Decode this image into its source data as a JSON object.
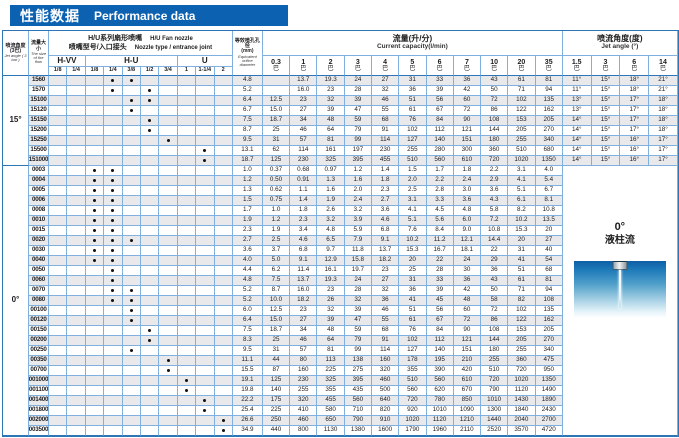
{
  "title": {
    "zh": "性能数据",
    "en": "Performance data"
  },
  "colors": {
    "title_bar": "#0c62b0",
    "grid_line": "#7fb0de",
    "grid_outer": "#2e75b6",
    "stripe": "#e9e9ec",
    "text": "#1c1c1c",
    "dot": "#111111"
  },
  "header": {
    "jet_angle_col": {
      "zh": "喷流角度(3巴)",
      "en": "Jet angle ( 3 bar )"
    },
    "flow_col": {
      "zh": "流量大小",
      "en": "The size of the flow"
    },
    "nozzle_group": {
      "zh1": "H/U系列扇形喷嘴",
      "en1": "H/U  Fan nozzle",
      "zh2": "喷嘴型号/入口接头",
      "en2": "Nozzle type / entrance joint"
    },
    "nozzle_families": [
      {
        "name": "H-VV",
        "sizes": [
          "1/8",
          "1/4"
        ]
      },
      {
        "name": "H-U",
        "sizes": [
          "1/8",
          "1/4",
          "3/8",
          "1/2",
          "3/4"
        ]
      },
      {
        "name": "U",
        "sizes": [
          "1",
          "1-1/4",
          "2"
        ]
      }
    ],
    "orifice_col": {
      "zh": "等效喷孔孔径",
      "unit": "(mm)",
      "en": "Equivalent orifice diameter"
    },
    "capacity_group": {
      "zh": "流量(升/分)",
      "en": "Current capacity(l/min)"
    },
    "capacity_pressures": [
      "0.3",
      "1",
      "2",
      "3",
      "4",
      "5",
      "6",
      "7",
      "10",
      "20",
      "35"
    ],
    "pressure_unit": "巴",
    "angle_group": {
      "zh": "喷流角度(度)",
      "en": "Jet angle (°)"
    },
    "angle_pressures": [
      "1.5",
      "3",
      "6",
      "14"
    ]
  },
  "groups": [
    {
      "angle": "15°",
      "rows": [
        {
          "flow": "1560",
          "dots": [
            3,
            4
          ],
          "orifice": "4.8",
          "capacity": [
            "",
            "13.7",
            "19.3",
            "24",
            "27",
            "31",
            "33",
            "36",
            "43",
            "61",
            "81"
          ],
          "angles": [
            "11°",
            "15°",
            "18°",
            "21°"
          ]
        },
        {
          "flow": "1570",
          "dots": [
            3,
            5
          ],
          "orifice": "5.2",
          "capacity": [
            "",
            "16.0",
            "23",
            "28",
            "32",
            "36",
            "39",
            "42",
            "50",
            "71",
            "94"
          ],
          "angles": [
            "11°",
            "15°",
            "18°",
            "21°"
          ]
        },
        {
          "flow": "15100",
          "dots": [
            4,
            5
          ],
          "orifice": "6.4",
          "capacity": [
            "12.5",
            "23",
            "32",
            "39",
            "46",
            "51",
            "56",
            "60",
            "72",
            "102",
            "135"
          ],
          "angles": [
            "13°",
            "15°",
            "17°",
            "18°"
          ]
        },
        {
          "flow": "15120",
          "dots": [
            4
          ],
          "orifice": "6.7",
          "capacity": [
            "15.0",
            "27",
            "39",
            "47",
            "55",
            "61",
            "67",
            "72",
            "86",
            "122",
            "162"
          ],
          "angles": [
            "13°",
            "15°",
            "17°",
            "18°"
          ]
        },
        {
          "flow": "15150",
          "dots": [
            5
          ],
          "orifice": "7.5",
          "capacity": [
            "18.7",
            "34",
            "48",
            "59",
            "68",
            "76",
            "84",
            "90",
            "108",
            "153",
            "205"
          ],
          "angles": [
            "14°",
            "15°",
            "17°",
            "18°"
          ]
        },
        {
          "flow": "15200",
          "dots": [
            5
          ],
          "orifice": "8.7",
          "capacity": [
            "25",
            "46",
            "64",
            "79",
            "91",
            "102",
            "112",
            "121",
            "144",
            "205",
            "270"
          ],
          "angles": [
            "14°",
            "15°",
            "17°",
            "18°"
          ]
        },
        {
          "flow": "15250",
          "dots": [
            6
          ],
          "orifice": "9.5",
          "capacity": [
            "31",
            "57",
            "81",
            "99",
            "114",
            "127",
            "140",
            "151",
            "180",
            "255",
            "340"
          ],
          "angles": [
            "14°",
            "15°",
            "16°",
            "17°"
          ]
        },
        {
          "flow": "15500",
          "dots": [
            8
          ],
          "orifice": "13.1",
          "capacity": [
            "62",
            "114",
            "161",
            "197",
            "230",
            "255",
            "280",
            "300",
            "360",
            "510",
            "680"
          ],
          "angles": [
            "14°",
            "15°",
            "16°",
            "17°"
          ]
        },
        {
          "flow": "151000",
          "dots": [
            8
          ],
          "orifice": "18.7",
          "capacity": [
            "125",
            "230",
            "325",
            "395",
            "455",
            "510",
            "560",
            "610",
            "720",
            "1020",
            "1350"
          ],
          "angles": [
            "14°",
            "15°",
            "16°",
            "17°"
          ]
        }
      ]
    },
    {
      "angle": "0°",
      "graphic": {
        "deg": "0°",
        "zh": "液柱流"
      },
      "rows": [
        {
          "flow": "0003",
          "dots": [
            2,
            3
          ],
          "orifice": "1.0",
          "capacity": [
            "0.37",
            "0.68",
            "0.97",
            "1.2",
            "1.4",
            "1.5",
            "1.7",
            "1.8",
            "2.2",
            "3.1",
            "4.0"
          ]
        },
        {
          "flow": "0004",
          "dots": [
            2,
            3
          ],
          "orifice": "1.2",
          "capacity": [
            "0.50",
            "0.91",
            "1.3",
            "1.6",
            "1.8",
            "2.0",
            "2.2",
            "2.4",
            "2.9",
            "4.1",
            "5.4"
          ]
        },
        {
          "flow": "0005",
          "dots": [
            2,
            3
          ],
          "orifice": "1.3",
          "capacity": [
            "0.62",
            "1.1",
            "1.6",
            "2.0",
            "2.3",
            "2.5",
            "2.8",
            "3.0",
            "3.6",
            "5.1",
            "6.7"
          ]
        },
        {
          "flow": "0006",
          "dots": [
            2,
            3
          ],
          "orifice": "1.5",
          "capacity": [
            "0.75",
            "1.4",
            "1.9",
            "2.4",
            "2.7",
            "3.1",
            "3.3",
            "3.6",
            "4.3",
            "6.1",
            "8.1"
          ]
        },
        {
          "flow": "0008",
          "dots": [
            2,
            3
          ],
          "orifice": "1.7",
          "capacity": [
            "1.0",
            "1.8",
            "2.6",
            "3.2",
            "3.6",
            "4.1",
            "4.5",
            "4.8",
            "5.8",
            "8.2",
            "10.8"
          ]
        },
        {
          "flow": "0010",
          "dots": [
            2,
            3
          ],
          "orifice": "1.9",
          "capacity": [
            "1.2",
            "2.3",
            "3.2",
            "3.9",
            "4.6",
            "5.1",
            "5.6",
            "6.0",
            "7.2",
            "10.2",
            "13.5"
          ]
        },
        {
          "flow": "0015",
          "dots": [
            2,
            3
          ],
          "orifice": "2.3",
          "capacity": [
            "1.9",
            "3.4",
            "4.8",
            "5.9",
            "6.8",
            "7.6",
            "8.4",
            "9.0",
            "10.8",
            "15.3",
            "20"
          ]
        },
        {
          "flow": "0020",
          "dots": [
            2,
            3,
            4
          ],
          "orifice": "2.7",
          "capacity": [
            "2.5",
            "4.6",
            "6.5",
            "7.9",
            "9.1",
            "10.2",
            "11.2",
            "12.1",
            "14.4",
            "20",
            "27"
          ]
        },
        {
          "flow": "0030",
          "dots": [
            2,
            3
          ],
          "orifice": "3.6",
          "capacity": [
            "3.7",
            "6.8",
            "9.7",
            "11.8",
            "13.7",
            "15.3",
            "16.7",
            "18.1",
            "22",
            "31",
            "40"
          ]
        },
        {
          "flow": "0040",
          "dots": [
            2,
            3
          ],
          "orifice": "4.0",
          "capacity": [
            "5.0",
            "9.1",
            "12.9",
            "15.8",
            "18.2",
            "20",
            "22",
            "24",
            "29",
            "41",
            "54"
          ]
        },
        {
          "flow": "0050",
          "dots": [
            3
          ],
          "orifice": "4.4",
          "capacity": [
            "6.2",
            "11.4",
            "16.1",
            "19.7",
            "23",
            "25",
            "28",
            "30",
            "36",
            "51",
            "68"
          ]
        },
        {
          "flow": "0060",
          "dots": [
            3
          ],
          "orifice": "4.8",
          "capacity": [
            "7.5",
            "13.7",
            "19.3",
            "24",
            "27",
            "31",
            "33",
            "36",
            "43",
            "61",
            "81"
          ]
        },
        {
          "flow": "0070",
          "dots": [
            3,
            4
          ],
          "orifice": "5.2",
          "capacity": [
            "8.7",
            "16.0",
            "23",
            "28",
            "32",
            "36",
            "39",
            "42",
            "50",
            "71",
            "94"
          ]
        },
        {
          "flow": "0080",
          "dots": [
            3,
            4
          ],
          "orifice": "5.2",
          "capacity": [
            "10.0",
            "18.2",
            "26",
            "32",
            "36",
            "41",
            "45",
            "48",
            "58",
            "82",
            "108"
          ]
        },
        {
          "flow": "00100",
          "dots": [
            4
          ],
          "orifice": "6.0",
          "capacity": [
            "12.5",
            "23",
            "32",
            "39",
            "46",
            "51",
            "56",
            "60",
            "72",
            "102",
            "135"
          ]
        },
        {
          "flow": "00120",
          "dots": [
            4
          ],
          "orifice": "6.4",
          "capacity": [
            "15.0",
            "27",
            "39",
            "47",
            "55",
            "61",
            "67",
            "72",
            "86",
            "122",
            "162"
          ]
        },
        {
          "flow": "00150",
          "dots": [
            5
          ],
          "orifice": "7.5",
          "capacity": [
            "18.7",
            "34",
            "48",
            "59",
            "68",
            "76",
            "84",
            "90",
            "108",
            "153",
            "205"
          ]
        },
        {
          "flow": "00200",
          "dots": [
            5
          ],
          "orifice": "8.3",
          "capacity": [
            "25",
            "46",
            "64",
            "79",
            "91",
            "102",
            "112",
            "121",
            "144",
            "205",
            "270"
          ]
        },
        {
          "flow": "00250",
          "dots": [
            4
          ],
          "orifice": "9.5",
          "capacity": [
            "31",
            "57",
            "81",
            "99",
            "114",
            "127",
            "140",
            "151",
            "180",
            "255",
            "340"
          ]
        },
        {
          "flow": "00350",
          "dots": [
            6
          ],
          "orifice": "11.1",
          "capacity": [
            "44",
            "80",
            "113",
            "138",
            "160",
            "178",
            "195",
            "210",
            "255",
            "360",
            "475"
          ]
        },
        {
          "flow": "00700",
          "dots": [
            6
          ],
          "orifice": "15.5",
          "capacity": [
            "87",
            "160",
            "225",
            "275",
            "320",
            "355",
            "390",
            "420",
            "510",
            "720",
            "950"
          ]
        },
        {
          "flow": "001000",
          "dots": [
            7
          ],
          "orifice": "19.1",
          "capacity": [
            "125",
            "230",
            "325",
            "395",
            "460",
            "510",
            "560",
            "610",
            "720",
            "1020",
            "1350"
          ]
        },
        {
          "flow": "001100",
          "dots": [
            7
          ],
          "orifice": "19.8",
          "capacity": [
            "140",
            "255",
            "355",
            "435",
            "500",
            "560",
            "620",
            "670",
            "790",
            "1120",
            "1490"
          ]
        },
        {
          "flow": "001400",
          "dots": [
            8
          ],
          "orifice": "22.2",
          "capacity": [
            "175",
            "320",
            "455",
            "560",
            "640",
            "720",
            "780",
            "850",
            "1010",
            "1430",
            "1890"
          ]
        },
        {
          "flow": "001800",
          "dots": [
            8
          ],
          "orifice": "25.4",
          "capacity": [
            "225",
            "410",
            "580",
            "710",
            "820",
            "920",
            "1010",
            "1090",
            "1300",
            "1840",
            "2430"
          ]
        },
        {
          "flow": "002000",
          "dots": [
            9
          ],
          "orifice": "26.6",
          "capacity": [
            "250",
            "460",
            "650",
            "790",
            "910",
            "1020",
            "1120",
            "1210",
            "1440",
            "2040",
            "2700"
          ]
        },
        {
          "flow": "003500",
          "dots": [
            9
          ],
          "orifice": "34.9",
          "capacity": [
            "440",
            "800",
            "1130",
            "1380",
            "1600",
            "1790",
            "1960",
            "2110",
            "2520",
            "3570",
            "4720"
          ]
        }
      ]
    }
  ]
}
